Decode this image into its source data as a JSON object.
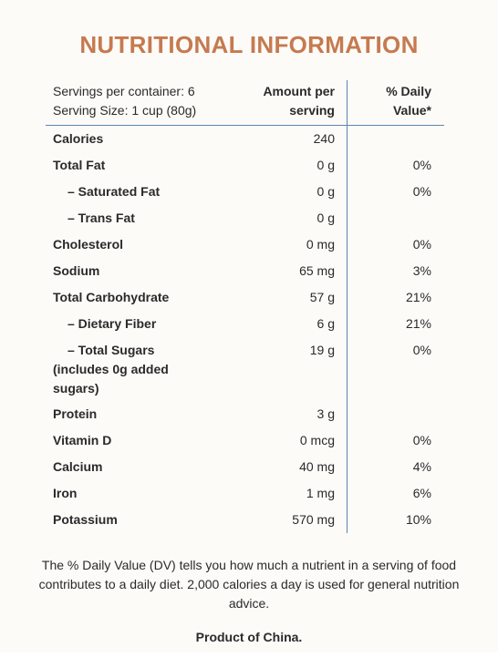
{
  "title": "NUTRITIONAL INFORMATION",
  "table": {
    "header": {
      "servings": "Servings per container: 6",
      "serving_size": "Serving Size: 1 cup (80g)",
      "amount": "Amount per serving",
      "daily_value": "% Daily Value*"
    },
    "rows": [
      {
        "name": "Calories",
        "amount": "240",
        "daily_value": null
      },
      {
        "name": "Total Fat",
        "amount": "0 g",
        "daily_value": "0%"
      },
      {
        "name": "– Saturated Fat",
        "amount": "0 g",
        "daily_value": "0%"
      },
      {
        "name": "– Trans Fat",
        "amount": "0 g",
        "daily_value": null
      },
      {
        "name": "Cholesterol",
        "amount": "0 mg",
        "daily_value": "0%"
      },
      {
        "name": "Sodium",
        "amount": "65 mg",
        "daily_value": "3%"
      },
      {
        "name": "Total Carbohydrate",
        "amount": "57 g",
        "daily_value": "21%"
      },
      {
        "name": "– Dietary Fiber",
        "amount": "6 g",
        "daily_value": "21%"
      },
      {
        "name": "– Total Sugars (includes 0g added sugars)",
        "amount": "19 g",
        "daily_value": "0%"
      },
      {
        "name": "Protein",
        "amount": "3 g",
        "daily_value": null
      },
      {
        "name": "Vitamin D",
        "amount": "0 mcg",
        "daily_value": "0%"
      },
      {
        "name": "Calcium",
        "amount": "40 mg",
        "daily_value": "4%"
      },
      {
        "name": "Iron",
        "amount": "1 mg",
        "daily_value": "6%"
      },
      {
        "name": "Potassium",
        "amount": "570 mg",
        "daily_value": "10%"
      }
    ]
  },
  "footer": {
    "note": "The % Daily Value (DV) tells you how much a nutrient in a serving of food contributes to a daily diet. 2,000 calories a day is used for general nutrition advice.",
    "origin": "Product of China."
  }
}
